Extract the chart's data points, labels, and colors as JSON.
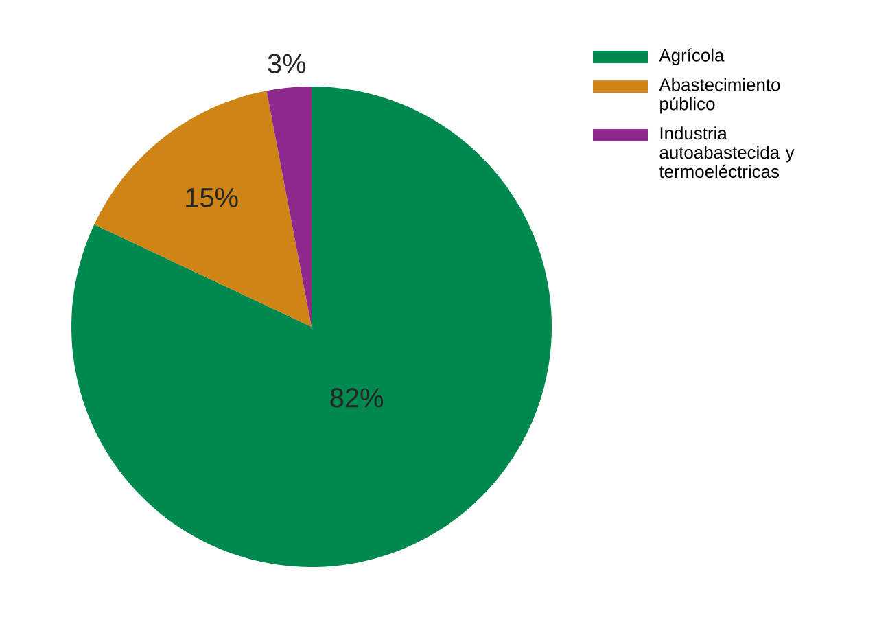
{
  "chart_data": {
    "type": "pie",
    "categories": [
      "Agrícola",
      "Abastecimiento público",
      "Industria autoabastecida y termoeléctricas"
    ],
    "values": [
      82,
      15,
      3
    ],
    "colors": [
      "#00894f",
      "#cf8416",
      "#8e2a8e"
    ],
    "value_labels": [
      "82%",
      "15%",
      "3%"
    ],
    "legend": "top right"
  }
}
